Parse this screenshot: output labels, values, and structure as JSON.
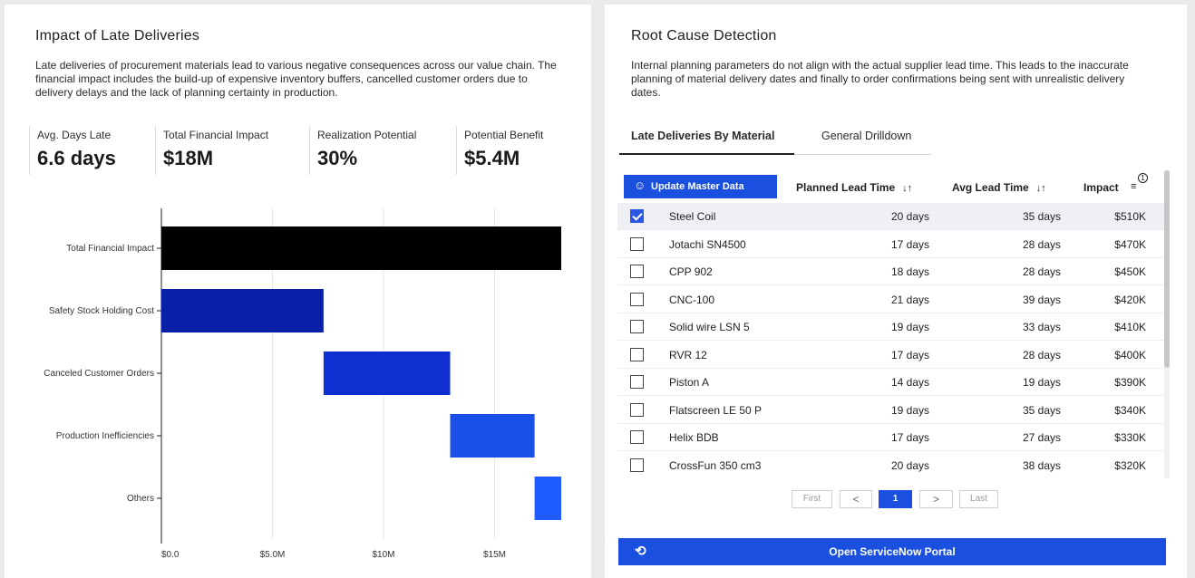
{
  "left": {
    "title": "Impact of Late Deliveries",
    "description": "Late deliveries of procurement materials lead to various negative consequences across our value chain. The financial impact includes the build-up of expensive inventory buffers, cancelled customer orders due to delivery delays and the lack of planning certainty in production.",
    "kpis": [
      {
        "label": "Avg. Days Late",
        "value": "6.6 days"
      },
      {
        "label": "Total Financial Impact",
        "value": "$18M"
      },
      {
        "label": "Realization Potential",
        "value": "30%"
      },
      {
        "label": "Potential Benefit",
        "value": "$5.4M"
      }
    ]
  },
  "chart_data": {
    "type": "bar",
    "orientation": "horizontal-waterfall",
    "categories": [
      "Total Financial Impact",
      "Safety Stock Holding Cost",
      "Canceled Customer Orders",
      "Production Inefficiencies",
      "Others"
    ],
    "starts": [
      0,
      0,
      7.3,
      13.0,
      16.8
    ],
    "values": [
      18.0,
      7.3,
      5.7,
      3.8,
      1.2
    ],
    "x_ticks": [
      "$0.0",
      "$5.0M",
      "$10M",
      "$15M"
    ],
    "x_tick_values": [
      0,
      5,
      10,
      15
    ],
    "xlim": [
      0,
      18
    ],
    "grid": "vertical",
    "colors": [
      "#000000",
      "#0a1fa8",
      "#0f2fd0",
      "#1a4fe8",
      "#1f5cff"
    ]
  },
  "right": {
    "title": "Root Cause Detection",
    "description": "Internal planning parameters do not align with the actual supplier lead time. This leads to the inaccurate planning of material delivery dates and finally to order confirmations being sent with unrealistic delivery dates.",
    "tabs": [
      "Late Deliveries By Material",
      "General Drilldown"
    ],
    "update_button": "Update Master Data",
    "columns": {
      "planned": "Planned Lead Time",
      "avg": "Avg Lead Time",
      "impact": "Impact",
      "sort_badge": "1"
    },
    "rows": [
      {
        "name": "Steel Coil",
        "planned": "20 days",
        "avg": "35 days",
        "impact": "$510K",
        "checked": true
      },
      {
        "name": "Jotachi SN4500",
        "planned": "17 days",
        "avg": "28 days",
        "impact": "$470K",
        "checked": false
      },
      {
        "name": "CPP 902",
        "planned": "18 days",
        "avg": "28 days",
        "impact": "$450K",
        "checked": false
      },
      {
        "name": "CNC-100",
        "planned": "21 days",
        "avg": "39 days",
        "impact": "$420K",
        "checked": false
      },
      {
        "name": "Solid wire LSN 5",
        "planned": "19 days",
        "avg": "33 days",
        "impact": "$410K",
        "checked": false
      },
      {
        "name": "RVR 12",
        "planned": "17 days",
        "avg": "28 days",
        "impact": "$400K",
        "checked": false
      },
      {
        "name": "Piston A",
        "planned": "14 days",
        "avg": "19 days",
        "impact": "$390K",
        "checked": false
      },
      {
        "name": "Flatscreen LE 50 P",
        "planned": "19 days",
        "avg": "35 days",
        "impact": "$340K",
        "checked": false
      },
      {
        "name": "Helix BDB",
        "planned": "17 days",
        "avg": "27 days",
        "impact": "$330K",
        "checked": false
      },
      {
        "name": "CrossFun 350 cm3",
        "planned": "20 days",
        "avg": "38 days",
        "impact": "$320K",
        "checked": false
      }
    ],
    "pagination": {
      "first": "First",
      "prev": "<",
      "current": "1",
      "next": ">",
      "last": "Last"
    },
    "portal_button": "Open ServiceNow Portal"
  }
}
